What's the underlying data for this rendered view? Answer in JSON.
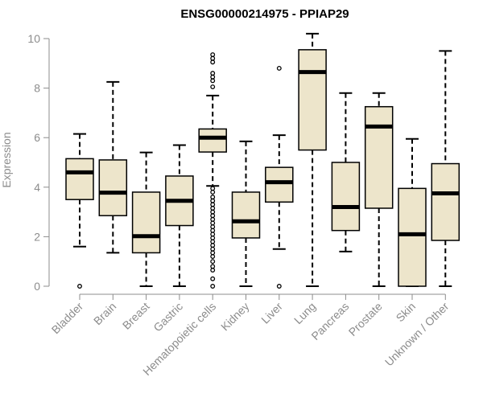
{
  "chart_data": {
    "type": "boxplot",
    "title": "ENSG00000214975 - PPIAP29",
    "ylabel": "Expression",
    "xlabel": "",
    "ylim": [
      0,
      10
    ],
    "yticks": [
      0,
      2,
      4,
      6,
      8,
      10
    ],
    "colors": {
      "box_fill": "#ede5cb",
      "box_stroke": "#000000",
      "axis": "#8c8c8c"
    },
    "categories": [
      "Bladder",
      "Brain",
      "Breast",
      "Gastric",
      "Hematopoietic cells",
      "Kidney",
      "Liver",
      "Lung",
      "Pancreas",
      "Prostate",
      "Skin",
      "Unknown / Other"
    ],
    "boxes": [
      {
        "min": 1.6,
        "q1": 3.5,
        "median": 4.6,
        "q3": 5.15,
        "max": 6.15,
        "outliers": [
          0.0
        ]
      },
      {
        "min": 1.35,
        "q1": 2.85,
        "median": 3.78,
        "q3": 5.1,
        "max": 8.25,
        "outliers": []
      },
      {
        "min": 0.0,
        "q1": 1.35,
        "median": 2.02,
        "q3": 3.8,
        "max": 5.4,
        "outliers": []
      },
      {
        "min": 0.0,
        "q1": 2.45,
        "median": 3.45,
        "q3": 4.45,
        "max": 5.7,
        "outliers": []
      },
      {
        "min": 4.05,
        "q1": 5.42,
        "median": 6.0,
        "q3": 6.35,
        "max": 7.7,
        "outliers": [
          9.35,
          9.2,
          9.05,
          8.6,
          8.45,
          8.3,
          8.05,
          3.95,
          3.8,
          3.6,
          3.45,
          3.3,
          3.15,
          3.0,
          2.85,
          2.7,
          2.55,
          2.4,
          2.25,
          2.1,
          1.95,
          1.8,
          1.65,
          1.5,
          1.35,
          1.2,
          1.0,
          0.8,
          0.65,
          0.3,
          0.0
        ]
      },
      {
        "min": 0.0,
        "q1": 1.95,
        "median": 2.62,
        "q3": 3.8,
        "max": 5.85,
        "outliers": []
      },
      {
        "min": 1.5,
        "q1": 3.4,
        "median": 4.2,
        "q3": 4.8,
        "max": 6.1,
        "outliers": [
          8.8,
          0.0
        ]
      },
      {
        "min": 0.0,
        "q1": 5.5,
        "median": 8.65,
        "q3": 9.55,
        "max": 10.2,
        "outliers": []
      },
      {
        "min": 1.4,
        "q1": 2.25,
        "median": 3.2,
        "q3": 5.0,
        "max": 7.8,
        "outliers": []
      },
      {
        "min": 0.0,
        "q1": 3.15,
        "median": 6.45,
        "q3": 7.25,
        "max": 7.8,
        "outliers": []
      },
      {
        "min": 0.0,
        "q1": 0.0,
        "median": 2.1,
        "q3": 3.95,
        "max": 5.95,
        "outliers": []
      },
      {
        "min": 0.0,
        "q1": 1.85,
        "median": 3.75,
        "q3": 4.95,
        "max": 9.5,
        "outliers": []
      }
    ]
  }
}
